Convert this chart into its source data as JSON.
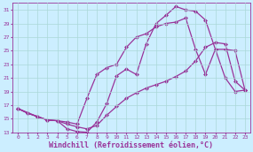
{
  "bg_color": "#cceeff",
  "line_color": "#993399",
  "markersize": 2.5,
  "linewidth": 0.9,
  "xlabel": "Windchill (Refroidissement éolien,°C)",
  "xlabel_fontsize": 6,
  "xlabel_color": "#993399",
  "tick_color": "#993399",
  "grid_color": "#aad8d8",
  "ylim": [
    13,
    32
  ],
  "xlim": [
    -0.5,
    23.5
  ],
  "yticks": [
    13,
    15,
    17,
    19,
    21,
    23,
    25,
    27,
    29,
    31
  ],
  "xticks": [
    0,
    1,
    2,
    3,
    4,
    5,
    6,
    7,
    8,
    9,
    10,
    11,
    12,
    13,
    14,
    15,
    16,
    17,
    18,
    19,
    20,
    21,
    22,
    23
  ],
  "curve1_x": [
    0,
    1,
    2,
    3,
    4,
    5,
    6,
    7,
    8,
    9,
    10,
    11,
    12,
    13,
    14,
    15,
    16,
    17,
    18,
    19,
    20,
    21,
    22,
    23
  ],
  "curve1_y": [
    16.5,
    15.8,
    15.3,
    14.8,
    14.7,
    13.5,
    13.1,
    13.0,
    14.5,
    17.2,
    21.3,
    22.3,
    21.5,
    26.0,
    29.0,
    30.2,
    31.5,
    31.0,
    30.8,
    29.5,
    25.2,
    21.0,
    19.0,
    19.2
  ],
  "curve2_x": [
    0,
    1,
    2,
    3,
    4,
    5,
    6,
    7,
    8,
    9,
    10,
    11,
    12,
    13,
    14,
    15,
    16,
    17,
    18,
    19,
    20,
    21,
    22,
    23
  ],
  "curve2_y": [
    16.5,
    15.8,
    15.3,
    14.8,
    14.7,
    14.5,
    14.2,
    18.0,
    21.5,
    22.5,
    23.0,
    25.5,
    27.0,
    27.5,
    28.5,
    29.0,
    29.2,
    29.8,
    25.2,
    21.5,
    25.2,
    25.2,
    25.0,
    19.2
  ],
  "curve3_x": [
    0,
    2,
    3,
    4,
    5,
    6,
    7,
    8,
    9,
    10,
    11,
    12,
    13,
    14,
    15,
    16,
    17,
    18,
    19,
    20,
    21,
    22,
    23
  ],
  "curve3_y": [
    16.5,
    15.3,
    14.8,
    14.7,
    14.2,
    13.8,
    13.5,
    14.0,
    15.5,
    16.8,
    18.0,
    18.8,
    19.5,
    20.0,
    20.5,
    21.2,
    22.0,
    23.5,
    25.5,
    26.2,
    26.0,
    20.5,
    19.2
  ]
}
